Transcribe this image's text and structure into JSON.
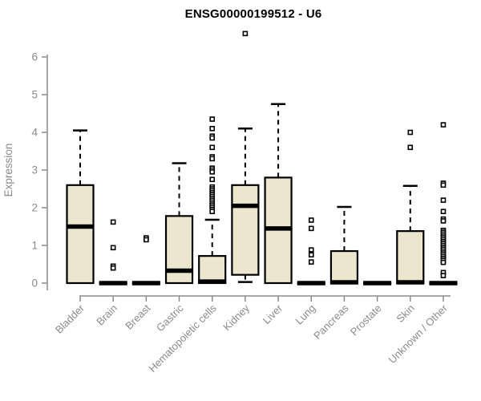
{
  "colors": {
    "box_fill": "#EBE6CD",
    "box_stroke": "#000000",
    "median": "#000000",
    "axis": "#8B8B8B",
    "tick_label": "#8B8B8B",
    "title_text": "#000000",
    "background": "#FFFFFF"
  },
  "chart_data": {
    "type": "boxplot",
    "title": "ENSG00000199512 - U6",
    "xlabel": "",
    "ylabel": "Expression",
    "ylim": [
      0,
      6.8
    ],
    "yticks": [
      0,
      1,
      2,
      3,
      4,
      5,
      6
    ],
    "grid": false,
    "legend": "none",
    "categories": [
      "Bladder",
      "Brain",
      "Breast",
      "Gastric",
      "Hematopoietic cells",
      "Kidney",
      "Liver",
      "Lung",
      "Pancreas",
      "Prostate",
      "Skin",
      "Unknown / Other"
    ],
    "series": [
      {
        "name": "Bladder",
        "low": 0,
        "q1": 0,
        "median": 1.5,
        "q3": 2.6,
        "high": 4.05,
        "outliers": []
      },
      {
        "name": "Brain",
        "low": 0,
        "q1": 0,
        "median": 0,
        "q3": 0,
        "high": 0,
        "outliers": [
          1.62,
          0.94,
          0.45,
          0.4
        ]
      },
      {
        "name": "Breast",
        "low": 0,
        "q1": 0,
        "median": 0,
        "q3": 0,
        "high": 0,
        "outliers": [
          1.2,
          1.15
        ]
      },
      {
        "name": "Gastric",
        "low": 0,
        "q1": 0,
        "median": 0.33,
        "q3": 1.78,
        "high": 3.18,
        "outliers": []
      },
      {
        "name": "Hematopoietic cells",
        "low": 0,
        "q1": 0,
        "median": 0.04,
        "q3": 0.72,
        "high": 1.68,
        "outliers": [
          4.35,
          4.1,
          3.9,
          3.85,
          3.6,
          3.35,
          3.3,
          3.05,
          3.0,
          2.95,
          2.75,
          2.55,
          2.5,
          2.45,
          2.4,
          2.35,
          2.3,
          2.25,
          2.2,
          2.15,
          2.1,
          2.05,
          2.0,
          1.95,
          1.9
        ]
      },
      {
        "name": "Kidney",
        "low": 0.03,
        "q1": 0.22,
        "median": 2.05,
        "q3": 2.6,
        "high": 4.1,
        "outliers": [
          6.62
        ]
      },
      {
        "name": "Liver",
        "low": 0,
        "q1": 0,
        "median": 1.45,
        "q3": 2.8,
        "high": 4.75,
        "outliers": []
      },
      {
        "name": "Lung",
        "low": 0,
        "q1": 0,
        "median": 0,
        "q3": 0,
        "high": 0,
        "outliers": [
          1.67,
          1.45,
          0.88,
          0.78,
          0.75,
          0.56
        ]
      },
      {
        "name": "Pancreas",
        "low": 0,
        "q1": 0,
        "median": 0.02,
        "q3": 0.85,
        "high": 2.02,
        "outliers": []
      },
      {
        "name": "Prostate",
        "low": 0,
        "q1": 0,
        "median": 0,
        "q3": 0,
        "high": 0,
        "outliers": []
      },
      {
        "name": "Skin",
        "low": 0,
        "q1": 0,
        "median": 0.02,
        "q3": 1.38,
        "high": 2.58,
        "outliers": [
          4.0,
          3.6
        ]
      },
      {
        "name": "Unknown / Other",
        "low": 0,
        "q1": 0,
        "median": 0,
        "q3": 0,
        "high": 0,
        "outliers": [
          4.2,
          2.65,
          2.6,
          2.2,
          1.9,
          1.7,
          1.65,
          1.4,
          1.35,
          1.3,
          1.25,
          1.2,
          1.15,
          1.1,
          1.05,
          1.0,
          0.95,
          0.9,
          0.85,
          0.8,
          0.75,
          0.7,
          0.65,
          0.6,
          0.55,
          0.28,
          0.2
        ]
      }
    ]
  }
}
